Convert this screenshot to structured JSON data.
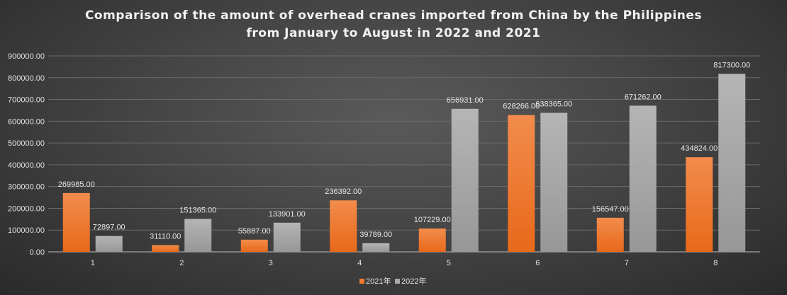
{
  "chart_data": {
    "type": "bar",
    "title_line1": "Comparison of the amount of overhead cranes imported from China by the Philippines",
    "title_line2": "from January to August in 2022 and 2021",
    "xlabel": "",
    "ylabel": "",
    "categories": [
      "1",
      "2",
      "3",
      "4",
      "5",
      "6",
      "7",
      "8"
    ],
    "ylim": [
      0,
      900000
    ],
    "yticks": [
      0,
      100000,
      200000,
      300000,
      400000,
      500000,
      600000,
      700000,
      800000,
      900000
    ],
    "grid": true,
    "legend_position": "bottom",
    "series": [
      {
        "name": "2021年",
        "color": "#f07a28",
        "values": [
          269985,
          31110,
          55887,
          236392,
          107229,
          628266,
          156547,
          434824
        ]
      },
      {
        "name": "2022年",
        "color": "#a9a9a9",
        "values": [
          72897,
          151365,
          133901,
          39789,
          656931,
          638365,
          671262,
          817300
        ]
      }
    ]
  }
}
